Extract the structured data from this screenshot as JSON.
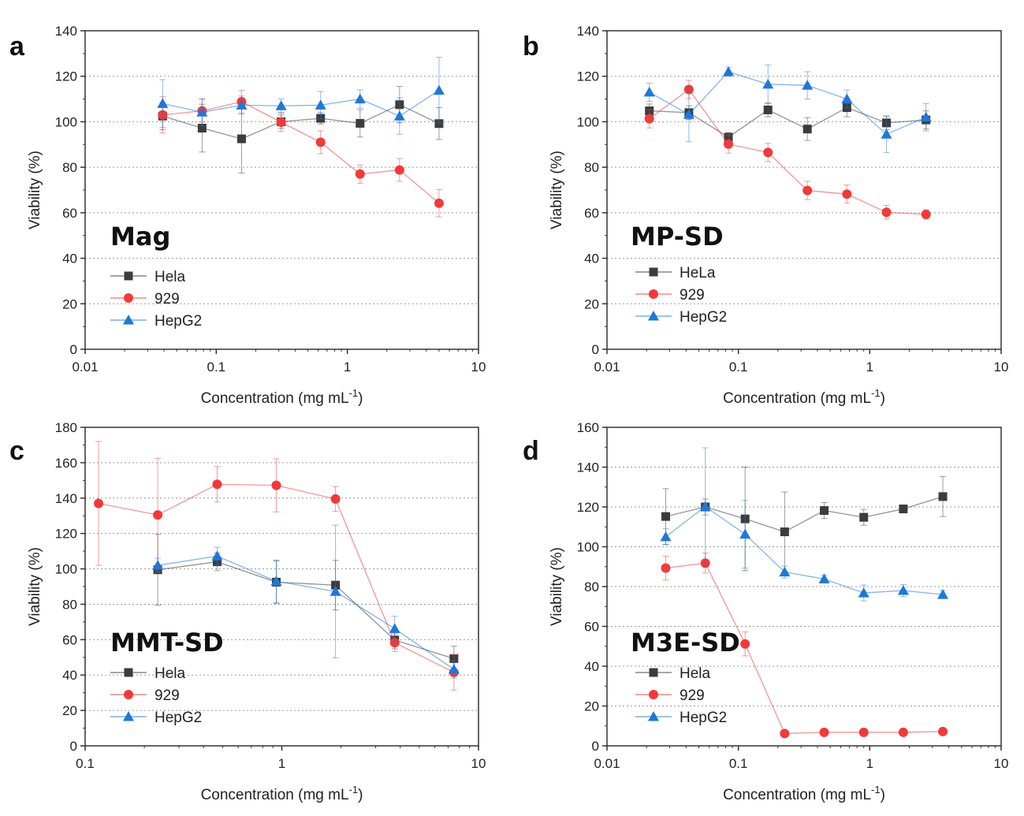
{
  "colors": {
    "hela": "#3c3c3c",
    "l929": "#f03a3a",
    "hepg2": "#1f78d8",
    "grid": "#9a9a9a",
    "frame": "#333333"
  },
  "chart_data": [
    {
      "panel": "a",
      "type": "line",
      "label": "Mag",
      "xlabel": "Concentration (mg mL",
      "xlabel_sup": "-1",
      "xlabel_end": ")",
      "ylabel": "Viability (%)",
      "xscale": "log",
      "xlim": [
        0.01,
        10
      ],
      "ylim": [
        0,
        140
      ],
      "xticks": [
        0.01,
        0.1,
        1,
        10
      ],
      "xtick_labels": [
        "0.01",
        "0.1",
        "1",
        "10"
      ],
      "yticks": [
        0,
        20,
        40,
        60,
        80,
        100,
        120,
        140
      ],
      "ytick_labels": [
        "0",
        "20",
        "40",
        "60",
        "80",
        "100",
        "120",
        "140"
      ],
      "grid": "horizontal dotted",
      "legend_position": "bottom-left",
      "series": [
        {
          "name": "Hela",
          "key": "hela",
          "marker": "square",
          "x": [
            0.039,
            0.078,
            0.156,
            0.3125,
            0.625,
            1.25,
            2.5,
            5
          ],
          "y": [
            102.5,
            97.2,
            92.5,
            100.0,
            101.5,
            99.3,
            107.5,
            99.2
          ],
          "err": [
            6,
            10.5,
            15,
            3,
            2.5,
            6,
            8,
            7
          ]
        },
        {
          "name": "929",
          "key": "l929",
          "marker": "circle",
          "x": [
            0.039,
            0.078,
            0.156,
            0.3125,
            0.625,
            1.25,
            2.5,
            5
          ],
          "y": [
            103.0,
            104.8,
            108.8,
            99.8,
            91.0,
            77.0,
            78.8,
            64.2
          ],
          "err": [
            8,
            5,
            5,
            4,
            5,
            4,
            5,
            6
          ]
        },
        {
          "name": "HepG2",
          "key": "hepg2",
          "marker": "triangle",
          "x": [
            0.039,
            0.078,
            0.156,
            0.3125,
            0.625,
            1.25,
            2.5,
            5
          ],
          "y": [
            108.0,
            104.2,
            107.3,
            107.0,
            107.3,
            110.0,
            102.5,
            113.8
          ],
          "err": [
            10.5,
            6,
            4,
            3,
            6,
            4,
            8,
            14.5
          ]
        }
      ]
    },
    {
      "panel": "b",
      "type": "line",
      "label": "MP-SD",
      "xlabel": "Concentration (mg mL",
      "xlabel_sup": "-1",
      "xlabel_end": ")",
      "ylabel": "Viability (%)",
      "xscale": "log",
      "xlim": [
        0.01,
        10
      ],
      "ylim": [
        0,
        140
      ],
      "xticks": [
        0.01,
        0.1,
        1,
        10
      ],
      "xtick_labels": [
        "0.01",
        "0.1",
        "1",
        "10"
      ],
      "yticks": [
        0,
        20,
        40,
        60,
        80,
        100,
        120,
        140
      ],
      "ytick_labels": [
        "0",
        "20",
        "40",
        "60",
        "80",
        "100",
        "120",
        "140"
      ],
      "grid": "horizontal dotted",
      "legend_position": "bottom-left",
      "series": [
        {
          "name": "HeLa",
          "key": "hela",
          "marker": "square",
          "x": [
            0.021,
            0.042,
            0.084,
            0.168,
            0.335,
            0.67,
            1.34,
            2.68
          ],
          "y": [
            104.8,
            104.0,
            93.2,
            105.2,
            96.8,
            106.2,
            99.5,
            100.8
          ],
          "err": [
            3,
            3,
            2,
            3,
            5,
            4,
            3,
            4
          ]
        },
        {
          "name": "929",
          "key": "l929",
          "marker": "circle",
          "x": [
            0.021,
            0.042,
            0.084,
            0.168,
            0.335,
            0.67,
            1.34,
            2.68
          ],
          "y": [
            101.3,
            114.2,
            90.2,
            86.5,
            69.8,
            68.2,
            60.2,
            59.3
          ],
          "err": [
            4,
            4,
            4,
            4,
            4,
            4,
            3,
            2
          ]
        },
        {
          "name": "HepG2",
          "key": "hepg2",
          "marker": "triangle",
          "x": [
            0.021,
            0.042,
            0.084,
            0.168,
            0.335,
            0.67,
            1.34,
            2.68
          ],
          "y": [
            113.0,
            103.2,
            122.0,
            116.5,
            116.0,
            110.0,
            94.5,
            102.0
          ],
          "err": [
            4,
            12,
            2,
            8.5,
            6,
            4,
            8,
            6
          ]
        }
      ]
    },
    {
      "panel": "c",
      "type": "line",
      "label": "MMT-SD",
      "xlabel": "Concentration (mg mL",
      "xlabel_sup": "-1",
      "xlabel_end": ")",
      "ylabel": "Viability (%)",
      "xscale": "log",
      "xlim": [
        0.1,
        10
      ],
      "ylim": [
        0,
        180
      ],
      "xticks": [
        0.1,
        1,
        10
      ],
      "xtick_labels": [
        "0.1",
        "1",
        "10"
      ],
      "yticks": [
        0,
        20,
        40,
        60,
        80,
        100,
        120,
        140,
        160,
        180
      ],
      "ytick_labels": [
        "0",
        "20",
        "40",
        "60",
        "80",
        "100",
        "120",
        "140",
        "160",
        "180"
      ],
      "grid": "horizontal dotted",
      "legend_position": "bottom-left",
      "series": [
        {
          "name": "Hela",
          "key": "hela",
          "marker": "square",
          "x": [
            0.234,
            0.469,
            0.9375,
            1.875,
            3.75,
            7.5
          ],
          "y": [
            99.5,
            104.0,
            92.5,
            90.8,
            59.8,
            49.3
          ],
          "err": [
            20,
            5,
            12,
            14,
            5,
            7
          ]
        },
        {
          "name": "929",
          "key": "l929",
          "marker": "circle",
          "x": [
            0.117,
            0.234,
            0.469,
            0.9375,
            1.875,
            3.75,
            7.5
          ],
          "y": [
            137.0,
            130.5,
            147.8,
            147.2,
            139.5,
            58.3,
            41.5
          ],
          "err": [
            35,
            32,
            10,
            15,
            7,
            5,
            10
          ]
        },
        {
          "name": "HepG2",
          "key": "hepg2",
          "marker": "triangle",
          "x": [
            0.234,
            0.469,
            0.9375,
            1.875,
            3.75,
            7.5
          ],
          "y": [
            102.0,
            107.2,
            93.0,
            87.2,
            66.2,
            43.2
          ],
          "err": [
            4,
            5,
            12,
            37.5,
            7,
            5
          ]
        }
      ]
    },
    {
      "panel": "d",
      "type": "line",
      "label": "M3E-SD",
      "xlabel": "Concentration (mg mL",
      "xlabel_sup": "-1",
      "xlabel_end": ")",
      "ylabel": "Viability (%)",
      "xscale": "log",
      "xlim": [
        0.01,
        10
      ],
      "ylim": [
        0,
        160
      ],
      "xticks": [
        0.01,
        0.1,
        1,
        10
      ],
      "xtick_labels": [
        "0.01",
        "0.1",
        "1",
        "10"
      ],
      "yticks": [
        0,
        20,
        40,
        60,
        80,
        100,
        120,
        140,
        160
      ],
      "ytick_labels": [
        "0",
        "20",
        "40",
        "60",
        "80",
        "100",
        "120",
        "140",
        "160"
      ],
      "grid": "horizontal dotted",
      "legend_position": "bottom-left",
      "series": [
        {
          "name": "Hela",
          "key": "hela",
          "marker": "square",
          "x": [
            0.028,
            0.056,
            0.1125,
            0.225,
            0.45,
            0.9,
            1.8,
            3.6
          ],
          "y": [
            115.2,
            120.0,
            114.0,
            107.5,
            118.2,
            114.8,
            119.0,
            125.2
          ],
          "err": [
            14,
            4,
            26,
            20,
            4,
            4,
            2,
            10
          ]
        },
        {
          "name": "929",
          "key": "l929",
          "marker": "circle",
          "x": [
            0.028,
            0.056,
            0.1125,
            0.225,
            0.45,
            0.9,
            1.8,
            3.6
          ],
          "y": [
            89.3,
            91.8,
            51.2,
            6.2,
            6.8,
            6.8,
            6.8,
            7.2
          ],
          "err": [
            6,
            5,
            6,
            1,
            1,
            1,
            1,
            1
          ]
        },
        {
          "name": "HepG2",
          "key": "hepg2",
          "marker": "triangle",
          "x": [
            0.028,
            0.056,
            0.1125,
            0.225,
            0.45,
            0.9,
            1.8,
            3.6
          ],
          "y": [
            105.0,
            120.2,
            106.3,
            87.3,
            83.8,
            76.8,
            78.0,
            76.0
          ],
          "err": [
            4,
            29.5,
            17,
            3,
            2,
            4,
            3,
            2
          ]
        }
      ]
    }
  ]
}
